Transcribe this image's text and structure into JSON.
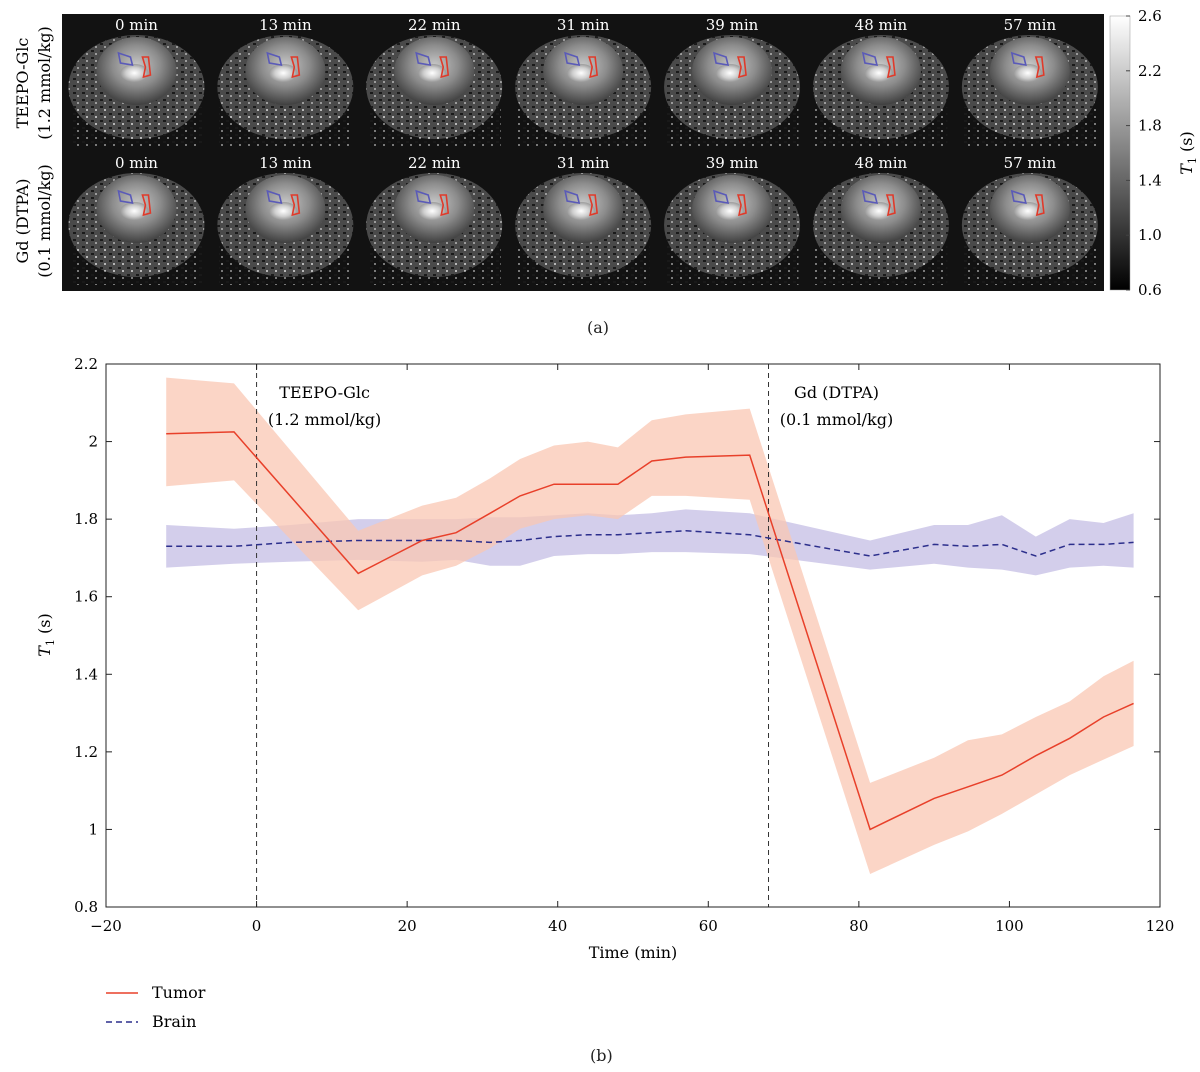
{
  "panel_a": {
    "label": "(a)",
    "rows": [
      {
        "label_line1": "TEEPO-Glc",
        "label_line2": "(1.2 mmol/kg)"
      },
      {
        "label_line1": "Gd (DTPA)",
        "label_line2": "(0.1 mmol/kg)"
      }
    ],
    "times": [
      "0 min",
      "13 min",
      "22 min",
      "31 min",
      "39 min",
      "48 min",
      "57 min"
    ],
    "colorbar": {
      "ticks": [
        "2.6",
        "2.2",
        "1.8",
        "1.4",
        "1.0",
        "0.6"
      ],
      "label_sym": "T",
      "label_sub": "1",
      "label_unit": " (s)"
    }
  },
  "panel_b": {
    "label": "(b)",
    "annotations": [
      {
        "line1": "TEEPO-Glc",
        "line2": "(1.2 mmol/kg)"
      },
      {
        "line1": "Gd (DTPA)",
        "line2": "(0.1 mmol/kg)"
      }
    ],
    "legend": [
      "Tumor",
      "Brain"
    ]
  },
  "colors": {
    "tumor": "#e8402a",
    "tumor_band": "#f9c7b3",
    "brain": "#2c2f8c",
    "brain_band": "#c8c2e6",
    "roi_tumor": "#e03a2a",
    "roi_brain": "#5a5ab8"
  },
  "chart_data": {
    "type": "line",
    "xlabel": "Time (min)",
    "ylabel": "T1 (s)",
    "xlim": [
      -20,
      120
    ],
    "ylim": [
      0.8,
      2.2
    ],
    "xticks": [
      -20,
      0,
      20,
      40,
      60,
      80,
      100,
      120
    ],
    "yticks": [
      0.8,
      1,
      1.2,
      1.4,
      1.6,
      1.8,
      2,
      2.2
    ],
    "grid": false,
    "legend_position": "below-left",
    "vlines": [
      0,
      68
    ],
    "series": [
      {
        "name": "Tumor",
        "style": "solid",
        "x": [
          -12,
          -3,
          13.5,
          22,
          26.5,
          31,
          35,
          39.5,
          44,
          48,
          52.5,
          57,
          65.5,
          81.5,
          90,
          94.5,
          99,
          103.5,
          108,
          112.5,
          116.5
        ],
        "y": [
          2.02,
          2.025,
          1.66,
          1.745,
          1.765,
          1.815,
          1.86,
          1.89,
          1.89,
          1.89,
          1.95,
          1.96,
          1.965,
          1.0,
          1.08,
          1.11,
          1.14,
          1.19,
          1.235,
          1.29,
          1.325
        ],
        "lower": [
          1.885,
          1.9,
          1.565,
          1.655,
          1.68,
          1.725,
          1.775,
          1.8,
          1.81,
          1.8,
          1.86,
          1.86,
          1.85,
          0.885,
          0.96,
          0.995,
          1.04,
          1.09,
          1.14,
          1.18,
          1.215
        ],
        "upper": [
          2.165,
          2.15,
          1.77,
          1.835,
          1.855,
          1.905,
          1.955,
          1.99,
          2.0,
          1.985,
          2.055,
          2.07,
          2.085,
          1.12,
          1.185,
          1.23,
          1.245,
          1.29,
          1.33,
          1.395,
          1.435
        ]
      },
      {
        "name": "Brain",
        "style": "dashed",
        "x": [
          -12,
          -3,
          4.5,
          13.5,
          22,
          26.5,
          31,
          35,
          39.5,
          44,
          48,
          52.5,
          57,
          65.5,
          81.5,
          90,
          94.5,
          99,
          103.5,
          108,
          112.5,
          116.5
        ],
        "y": [
          1.73,
          1.73,
          1.74,
          1.745,
          1.745,
          1.745,
          1.74,
          1.745,
          1.755,
          1.76,
          1.76,
          1.765,
          1.77,
          1.76,
          1.705,
          1.735,
          1.73,
          1.735,
          1.705,
          1.735,
          1.735,
          1.74
        ],
        "lower": [
          1.675,
          1.685,
          1.69,
          1.695,
          1.69,
          1.695,
          1.68,
          1.68,
          1.705,
          1.71,
          1.71,
          1.715,
          1.715,
          1.71,
          1.67,
          1.685,
          1.675,
          1.67,
          1.655,
          1.675,
          1.68,
          1.675
        ],
        "upper": [
          1.785,
          1.775,
          1.785,
          1.8,
          1.8,
          1.8,
          1.805,
          1.805,
          1.81,
          1.815,
          1.81,
          1.815,
          1.825,
          1.815,
          1.745,
          1.785,
          1.785,
          1.81,
          1.755,
          1.8,
          1.79,
          1.815
        ]
      }
    ]
  }
}
